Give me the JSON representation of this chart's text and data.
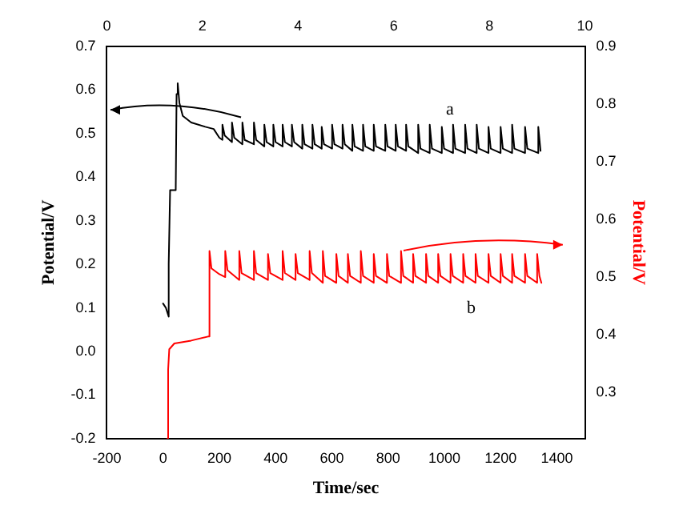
{
  "chart_data": {
    "type": "line",
    "xlabel": "Time/sec",
    "ylabel": "Potential/V",
    "y2label": "Potential/V",
    "xlim": [
      -200,
      1500
    ],
    "xticks": [
      -200,
      0,
      200,
      400,
      600,
      800,
      1000,
      1200,
      1400
    ],
    "x2lim": [
      0,
      10
    ],
    "x2ticks": [
      0,
      2,
      4,
      6,
      8,
      10
    ],
    "ylim": [
      -0.2,
      0.7
    ],
    "yticks": [
      -0.2,
      -0.1,
      {
        "value": 0,
        "label": "0.0"
      },
      0.1,
      0.2,
      0.3,
      0.4,
      0.5,
      0.6,
      0.7
    ],
    "y2lim": [
      0.22,
      0.9
    ],
    "y2ticks": [
      0.3,
      0.4,
      0.5,
      0.6,
      0.7,
      0.8,
      0.9
    ],
    "grid": false,
    "legend": false,
    "marker": "none",
    "line_style": "solid",
    "series": [
      {
        "name": "a",
        "color": "#000000",
        "x": [
          0,
          10,
          20,
          20,
          25,
          45,
          48,
          52,
          58,
          70,
          100,
          150,
          180,
          200,
          211,
          211,
          219,
          245,
          245,
          253,
          282,
          282,
          290,
          323,
          323,
          331,
          360,
          360,
          368,
          392,
          392,
          400,
          425,
          425,
          433,
          458,
          458,
          466,
          495,
          495,
          503,
          531,
          531,
          539,
          564,
          564,
          572,
          601,
          601,
          609,
          638,
          638,
          646,
          673,
          673,
          681,
          711,
          711,
          719,
          749,
          749,
          757,
          790,
          790,
          798,
          827,
          827,
          835,
          864,
          864,
          872,
          907,
          907,
          915,
          948,
          948,
          956,
          991,
          991,
          999,
          1031,
          1031,
          1039,
          1074,
          1074,
          1082,
          1115,
          1115,
          1123,
          1157,
          1157,
          1165,
          1200,
          1200,
          1208,
          1241,
          1241,
          1249,
          1287,
          1287,
          1295,
          1334,
          1334,
          1342
        ],
        "values": [
          0.11,
          0.1,
          0.08,
          0.2,
          0.37,
          0.37,
          0.59,
          0.615,
          0.57,
          0.54,
          0.525,
          0.515,
          0.51,
          0.49,
          0.485,
          0.52,
          0.495,
          0.48,
          0.525,
          0.49,
          0.475,
          0.525,
          0.485,
          0.475,
          0.525,
          0.485,
          0.47,
          0.52,
          0.48,
          0.47,
          0.52,
          0.48,
          0.47,
          0.52,
          0.48,
          0.47,
          0.52,
          0.48,
          0.465,
          0.52,
          0.475,
          0.465,
          0.52,
          0.475,
          0.465,
          0.515,
          0.475,
          0.465,
          0.52,
          0.475,
          0.465,
          0.52,
          0.475,
          0.46,
          0.52,
          0.47,
          0.46,
          0.52,
          0.47,
          0.46,
          0.52,
          0.47,
          0.46,
          0.52,
          0.47,
          0.46,
          0.52,
          0.47,
          0.46,
          0.52,
          0.47,
          0.455,
          0.52,
          0.465,
          0.455,
          0.52,
          0.465,
          0.455,
          0.515,
          0.465,
          0.455,
          0.52,
          0.465,
          0.455,
          0.52,
          0.465,
          0.455,
          0.52,
          0.465,
          0.455,
          0.515,
          0.465,
          0.455,
          0.515,
          0.465,
          0.455,
          0.52,
          0.465,
          0.455,
          0.515,
          0.465,
          0.455,
          0.515,
          0.46
        ]
      },
      {
        "name": "b",
        "color": "#ff0000",
        "axis": "y2",
        "x": [
          15,
          18,
          22,
          40,
          100,
          160,
          165,
          165,
          172,
          200,
          221,
          221,
          229,
          271,
          271,
          279,
          323,
          323,
          331,
          373,
          373,
          381,
          425,
          425,
          433,
          471,
          471,
          479,
          521,
          521,
          529,
          568,
          568,
          576,
          616,
          616,
          624,
          657,
          657,
          665,
          703,
          703,
          711,
          749,
          749,
          757,
          796,
          796,
          804,
          846,
          846,
          854,
          889,
          889,
          897,
          935,
          935,
          943,
          978,
          978,
          986,
          1022,
          1022,
          1030,
          1067,
          1067,
          1075,
          1111,
          1111,
          1119,
          1157,
          1157,
          1165,
          1200,
          1200,
          1208,
          1241,
          1241,
          1249,
          1287,
          1287,
          1295,
          1330,
          1330,
          1338,
          1345
        ],
        "values": [
          0.22,
          0.34,
          0.375,
          0.385,
          0.39,
          0.397,
          0.397,
          0.545,
          0.515,
          0.505,
          0.5,
          0.545,
          0.512,
          0.495,
          0.545,
          0.507,
          0.495,
          0.545,
          0.507,
          0.495,
          0.54,
          0.507,
          0.495,
          0.545,
          0.507,
          0.495,
          0.54,
          0.507,
          0.495,
          0.545,
          0.507,
          0.49,
          0.545,
          0.502,
          0.49,
          0.54,
          0.502,
          0.49,
          0.54,
          0.502,
          0.49,
          0.545,
          0.502,
          0.49,
          0.54,
          0.502,
          0.49,
          0.54,
          0.502,
          0.49,
          0.545,
          0.502,
          0.49,
          0.54,
          0.502,
          0.49,
          0.54,
          0.502,
          0.49,
          0.54,
          0.502,
          0.49,
          0.54,
          0.502,
          0.49,
          0.54,
          0.502,
          0.49,
          0.54,
          0.502,
          0.49,
          0.54,
          0.502,
          0.49,
          0.54,
          0.502,
          0.49,
          0.54,
          0.502,
          0.49,
          0.54,
          0.502,
          0.49,
          0.54,
          0.502,
          0.49
        ]
      }
    ]
  }
}
